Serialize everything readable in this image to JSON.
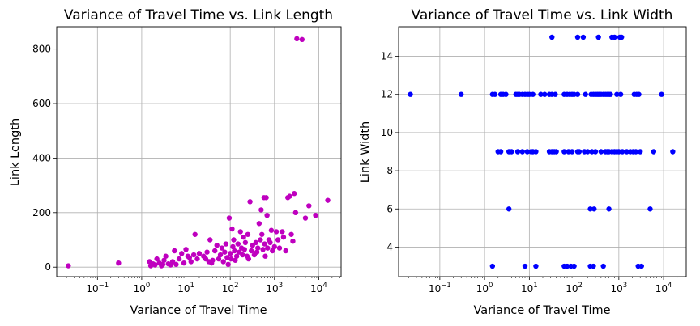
{
  "chart_data": [
    {
      "type": "scatter",
      "title": "Variance of Travel Time vs. Link Length",
      "xlabel": "Variance of Travel Time",
      "ylabel": "Link Length",
      "xscale": "log",
      "xlim": [
        0.012,
        32000
      ],
      "ylim": [
        -35,
        882
      ],
      "xticks": [
        "10^-1",
        "10^0",
        "10^1",
        "10^2",
        "10^3",
        "10^4"
      ],
      "yticks": [
        0,
        200,
        400,
        600,
        800
      ],
      "grid": true,
      "marker_color": "#bf00bf",
      "points": [
        [
          0.022,
          5
        ],
        [
          0.3,
          15
        ],
        [
          1.5,
          20
        ],
        [
          1.6,
          5
        ],
        [
          1.8,
          12
        ],
        [
          2.0,
          8
        ],
        [
          2.2,
          30
        ],
        [
          2.5,
          15
        ],
        [
          2.8,
          5
        ],
        [
          3.0,
          10
        ],
        [
          3.2,
          25
        ],
        [
          3.5,
          40
        ],
        [
          4.0,
          12
        ],
        [
          4.5,
          8
        ],
        [
          5.0,
          20
        ],
        [
          5.5,
          60
        ],
        [
          6.0,
          10
        ],
        [
          7.0,
          30
        ],
        [
          8.0,
          50
        ],
        [
          9.0,
          15
        ],
        [
          10.0,
          65
        ],
        [
          11.0,
          40
        ],
        [
          12.0,
          35
        ],
        [
          13.0,
          20
        ],
        [
          15.0,
          45
        ],
        [
          16.0,
          120
        ],
        [
          18.0,
          30
        ],
        [
          20.0,
          50
        ],
        [
          25.0,
          40
        ],
        [
          28.0,
          30
        ],
        [
          30.0,
          55
        ],
        [
          33.0,
          20
        ],
        [
          35.0,
          100
        ],
        [
          38.0,
          15
        ],
        [
          40.0,
          25
        ],
        [
          45.0,
          60
        ],
        [
          50.0,
          80
        ],
        [
          55.0,
          30
        ],
        [
          60.0,
          45
        ],
        [
          65.0,
          70
        ],
        [
          70.0,
          20
        ],
        [
          75.0,
          55
        ],
        [
          80.0,
          85
        ],
        [
          85.0,
          35
        ],
        [
          90.0,
          10
        ],
        [
          95.0,
          180
        ],
        [
          100.0,
          50
        ],
        [
          105.0,
          30
        ],
        [
          110.0,
          140
        ],
        [
          115.0,
          75
        ],
        [
          120.0,
          100
        ],
        [
          125.0,
          60
        ],
        [
          130.0,
          25
        ],
        [
          140.0,
          40
        ],
        [
          150.0,
          85
        ],
        [
          160.0,
          55
        ],
        [
          170.0,
          130
        ],
        [
          180.0,
          70
        ],
        [
          190.0,
          45
        ],
        [
          200.0,
          110
        ],
        [
          210.0,
          65
        ],
        [
          220.0,
          90
        ],
        [
          240.0,
          40
        ],
        [
          250.0,
          120
        ],
        [
          260.0,
          30
        ],
        [
          280.0,
          240
        ],
        [
          300.0,
          60
        ],
        [
          320.0,
          80
        ],
        [
          350.0,
          45
        ],
        [
          380.0,
          90
        ],
        [
          400.0,
          55
        ],
        [
          420.0,
          70
        ],
        [
          450.0,
          160
        ],
        [
          480.0,
          100
        ],
        [
          500.0,
          210
        ],
        [
          520.0,
          120
        ],
        [
          550.0,
          65
        ],
        [
          580.0,
          255
        ],
        [
          600.0,
          85
        ],
        [
          620.0,
          40
        ],
        [
          650.0,
          255
        ],
        [
          680.0,
          190
        ],
        [
          700.0,
          70
        ],
        [
          750.0,
          100
        ],
        [
          800.0,
          90
        ],
        [
          850.0,
          135
        ],
        [
          900.0,
          60
        ],
        [
          1000.0,
          75
        ],
        [
          1100.0,
          130
        ],
        [
          1200.0,
          100
        ],
        [
          1300.0,
          70
        ],
        [
          1500.0,
          130
        ],
        [
          1600.0,
          110
        ],
        [
          1800.0,
          60
        ],
        [
          2000.0,
          255
        ],
        [
          2200.0,
          260
        ],
        [
          2400.0,
          120
        ],
        [
          2600.0,
          95
        ],
        [
          2800.0,
          270
        ],
        [
          3000.0,
          200
        ],
        [
          3200.0,
          838
        ],
        [
          4200.0,
          835
        ],
        [
          5000.0,
          180
        ],
        [
          6000.0,
          225
        ],
        [
          8500.0,
          190
        ],
        [
          16000.0,
          245
        ]
      ]
    },
    {
      "type": "scatter",
      "title": "Variance of Travel Time vs. Link Width",
      "xlabel": "Variance of Travel Time",
      "ylabel": "Link Width",
      "xscale": "log",
      "xlim": [
        0.012,
        32000
      ],
      "ylim": [
        2.45,
        15.55
      ],
      "xticks": [
        "10^-1",
        "10^0",
        "10^1",
        "10^2",
        "10^3",
        "10^4"
      ],
      "yticks": [
        4,
        6,
        8,
        10,
        12,
        14
      ],
      "grid": true,
      "marker_color": "#0000ff",
      "points": [
        [
          0.022,
          12
        ],
        [
          0.3,
          12
        ],
        [
          1.5,
          12
        ],
        [
          1.7,
          12
        ],
        [
          2.3,
          12
        ],
        [
          2.6,
          12
        ],
        [
          3.0,
          12
        ],
        [
          5.0,
          12
        ],
        [
          5.5,
          12
        ],
        [
          6.0,
          12
        ],
        [
          7.0,
          12
        ],
        [
          8.0,
          12
        ],
        [
          9.0,
          12
        ],
        [
          10.0,
          12
        ],
        [
          12.0,
          12
        ],
        [
          18.0,
          12
        ],
        [
          22.0,
          12
        ],
        [
          28.0,
          12
        ],
        [
          32.0,
          12
        ],
        [
          38.0,
          12
        ],
        [
          60.0,
          12
        ],
        [
          70.0,
          12
        ],
        [
          80.0,
          12
        ],
        [
          90.0,
          12
        ],
        [
          100.0,
          12
        ],
        [
          120.0,
          12
        ],
        [
          180.0,
          12
        ],
        [
          240.0,
          12
        ],
        [
          270.0,
          12
        ],
        [
          300.0,
          12
        ],
        [
          330.0,
          12
        ],
        [
          360.0,
          12
        ],
        [
          400.0,
          12
        ],
        [
          450.0,
          12
        ],
        [
          500.0,
          12
        ],
        [
          550.0,
          12
        ],
        [
          600.0,
          12
        ],
        [
          650.0,
          12
        ],
        [
          900.0,
          12
        ],
        [
          1100.0,
          12
        ],
        [
          2200.0,
          12
        ],
        [
          2500.0,
          12
        ],
        [
          2800.0,
          12
        ],
        [
          9000.0,
          12
        ],
        [
          2.0,
          9
        ],
        [
          2.3,
          9
        ],
        [
          3.5,
          9
        ],
        [
          4.0,
          9
        ],
        [
          5.5,
          9
        ],
        [
          7.0,
          9
        ],
        [
          9.0,
          9
        ],
        [
          11.0,
          9
        ],
        [
          12.0,
          9
        ],
        [
          14.0,
          9
        ],
        [
          28.0,
          9
        ],
        [
          32.0,
          9
        ],
        [
          36.0,
          9
        ],
        [
          40.0,
          9
        ],
        [
          60.0,
          9
        ],
        [
          75.0,
          9
        ],
        [
          90.0,
          9
        ],
        [
          120.0,
          9
        ],
        [
          130.0,
          9
        ],
        [
          170.0,
          9
        ],
        [
          200.0,
          9
        ],
        [
          250.0,
          9
        ],
        [
          300.0,
          9
        ],
        [
          400.0,
          9
        ],
        [
          500.0,
          9
        ],
        [
          550.0,
          9
        ],
        [
          600.0,
          9
        ],
        [
          700.0,
          9
        ],
        [
          800.0,
          9
        ],
        [
          900.0,
          9
        ],
        [
          1000.0,
          9
        ],
        [
          1200.0,
          9
        ],
        [
          1500.0,
          9
        ],
        [
          1800.0,
          9
        ],
        [
          2100.0,
          9
        ],
        [
          2400.0,
          9
        ],
        [
          3000.0,
          9
        ],
        [
          6000.0,
          9
        ],
        [
          16000.0,
          9
        ],
        [
          3.5,
          6
        ],
        [
          230.0,
          6
        ],
        [
          280.0,
          6
        ],
        [
          600.0,
          6
        ],
        [
          5000.0,
          6
        ],
        [
          1.5,
          3
        ],
        [
          8.0,
          3
        ],
        [
          14.0,
          3
        ],
        [
          60.0,
          3
        ],
        [
          70.0,
          3
        ],
        [
          85.0,
          3
        ],
        [
          100.0,
          3
        ],
        [
          230.0,
          3
        ],
        [
          270.0,
          3
        ],
        [
          450.0,
          3
        ],
        [
          2700.0,
          3
        ],
        [
          3200.0,
          3
        ],
        [
          32.0,
          15
        ],
        [
          120.0,
          15
        ],
        [
          160.0,
          15
        ],
        [
          350.0,
          15
        ],
        [
          700.0,
          15
        ],
        [
          800.0,
          15
        ],
        [
          1050.0,
          15
        ],
        [
          1150.0,
          15
        ]
      ]
    }
  ]
}
